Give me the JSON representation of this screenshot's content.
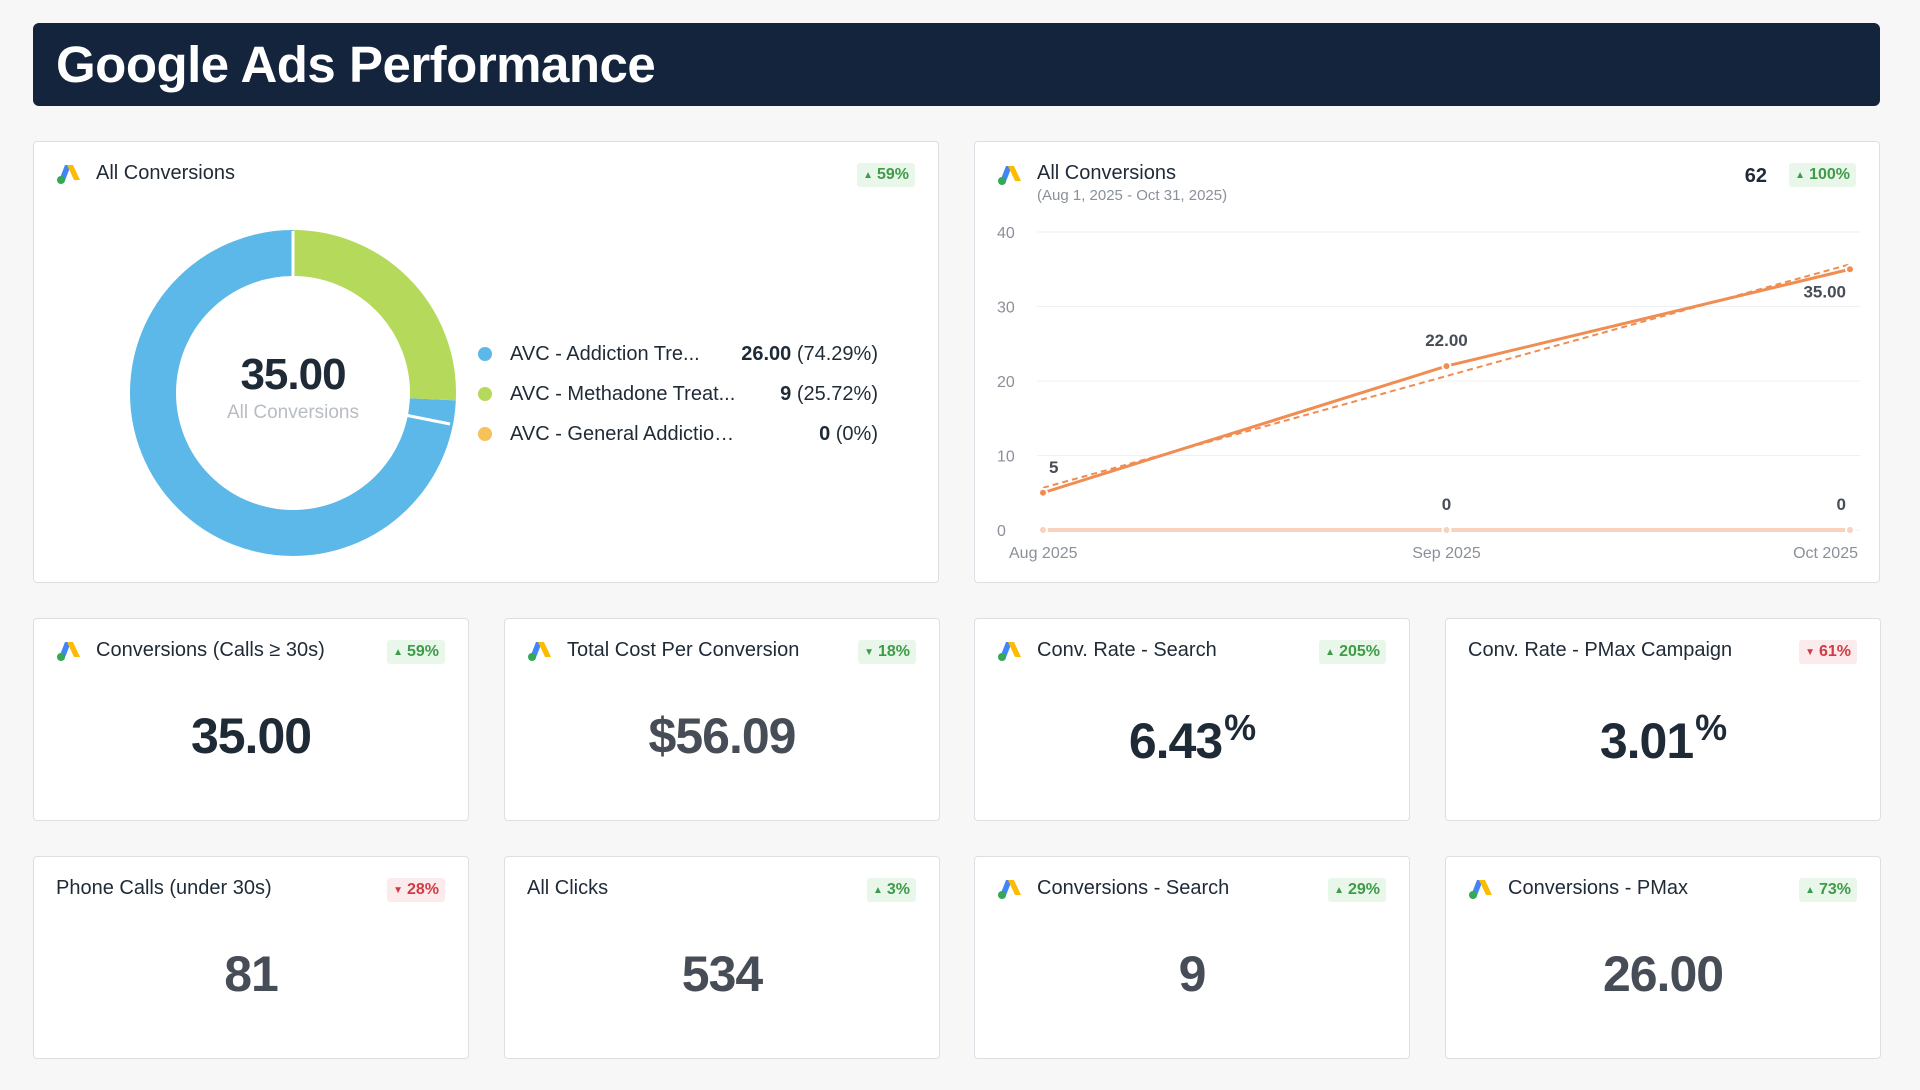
{
  "header": {
    "title": "Google Ads Performance"
  },
  "donut_card": {
    "title": "All Conversions",
    "badge": {
      "text": "59%",
      "direction": "up"
    },
    "center_value": "35.00",
    "center_label": "All Conversions",
    "legend": [
      {
        "name": "AVC - Addiction Tre...",
        "value": "26.00",
        "pct": "(74.29%)",
        "color": "#5cb8e8"
      },
      {
        "name": "AVC - Methadone Treat...",
        "value": "9",
        "pct": "(25.72%)",
        "color": "#b5d95a"
      },
      {
        "name": "AVC - General Addiction & R...",
        "value": "0",
        "pct": "(0%)",
        "color": "#f6c15b"
      }
    ]
  },
  "line_card": {
    "title": "All Conversions",
    "subtitle": "(Aug 1, 2025 - Oct 31, 2025)",
    "total": "62",
    "badge": {
      "text": "100%",
      "direction": "up"
    }
  },
  "chart_data": {
    "type": "line",
    "x": [
      "Aug 2025",
      "Sep 2025",
      "Oct 2025"
    ],
    "series": [
      {
        "values": [
          5,
          22,
          35
        ],
        "labels": [
          "5",
          "22.00",
          "35.00"
        ],
        "color": "#ef8d52"
      },
      {
        "values": [
          0,
          0,
          0
        ],
        "labels": [
          "",
          "0",
          "0"
        ],
        "color": "#f8d2bd"
      }
    ],
    "trendline": true,
    "ylim": [
      0,
      40
    ],
    "yticks": [
      "0",
      "10",
      "20",
      "30",
      "40"
    ],
    "grid": true
  },
  "kpis": [
    {
      "title": "Conversions (Calls ≥ 30s)",
      "value": "35.00",
      "unit": "",
      "badge": "59%",
      "direction": "up",
      "icon": true,
      "muted": false
    },
    {
      "title": "Total Cost Per Conversion",
      "value": "$56.09",
      "unit": "",
      "badge": "18%",
      "direction": "down-good",
      "icon": true,
      "muted": true
    },
    {
      "title": "Conv. Rate - Search",
      "value": "6.43",
      "unit": "%",
      "badge": "205%",
      "direction": "up",
      "icon": true,
      "muted": false
    },
    {
      "title": "Conv. Rate - PMax Campaign",
      "value": "3.01",
      "unit": "%",
      "badge": "61%",
      "direction": "down",
      "icon": false,
      "muted": false
    },
    {
      "title": "Phone Calls (under 30s)",
      "value": "81",
      "unit": "",
      "badge": "28%",
      "direction": "down",
      "icon": false,
      "muted": true
    },
    {
      "title": "All Clicks",
      "value": "534",
      "unit": "",
      "badge": "3%",
      "direction": "up",
      "icon": false,
      "muted": true
    },
    {
      "title": "Conversions - Search",
      "value": "9",
      "unit": "",
      "badge": "29%",
      "direction": "up",
      "icon": true,
      "muted": true
    },
    {
      "title": "Conversions - PMax",
      "value": "26.00",
      "unit": "",
      "badge": "73%",
      "direction": "up",
      "icon": true,
      "muted": true
    }
  ]
}
